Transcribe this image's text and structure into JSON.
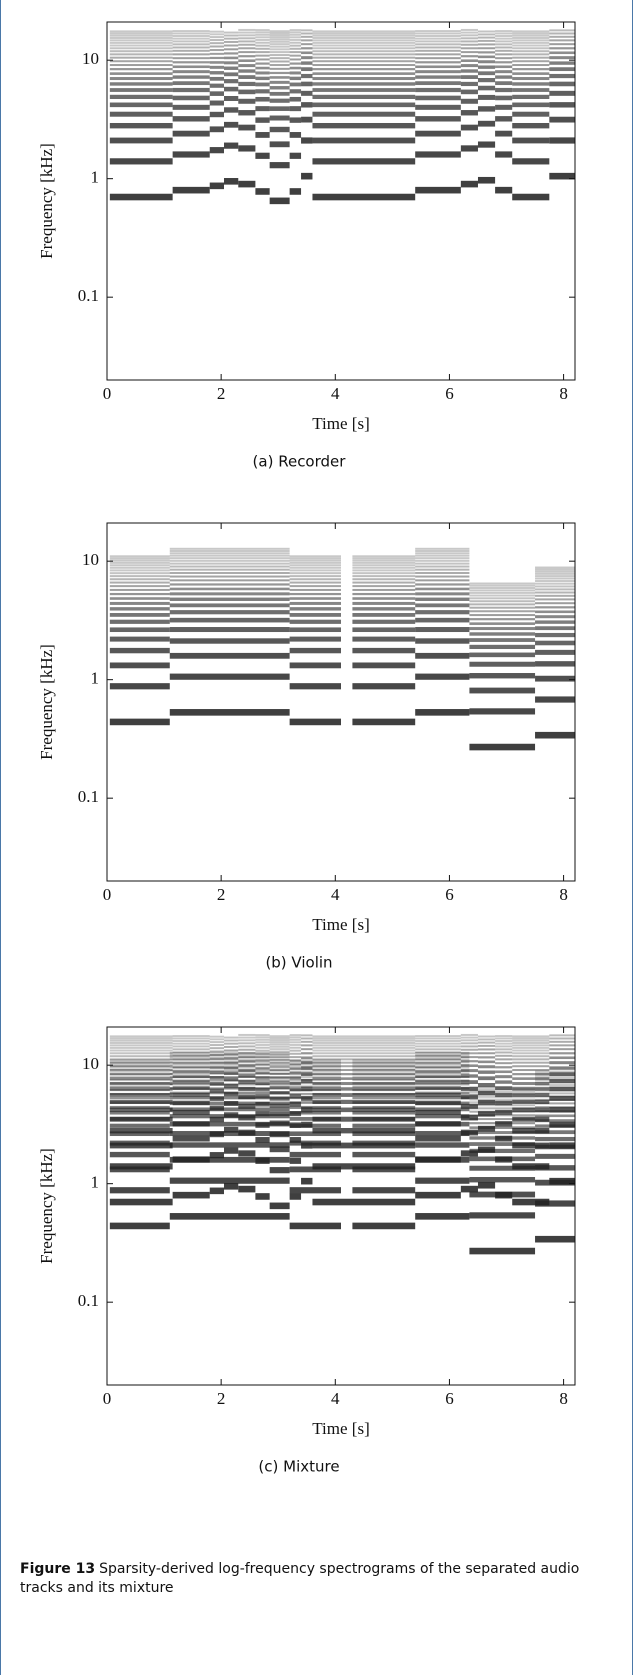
{
  "chart_data": [
    {
      "type": "spectrogram",
      "caption": "(a) Recorder",
      "xlabel": "Time [s]",
      "ylabel": "Frequency [kHz]",
      "xlim": [
        0,
        8.2
      ],
      "xticks": [
        0,
        2,
        4,
        6,
        8
      ],
      "ylim": [
        0.02,
        21
      ],
      "yticks": [
        0.1,
        1,
        10
      ],
      "log_y": true,
      "color": "#222222",
      "notes": {
        "start": [
          0.05,
          1.15,
          1.8,
          2.05,
          2.3,
          2.6,
          2.85,
          3.2,
          3.4,
          3.6,
          5.4,
          6.2,
          6.5,
          6.8,
          7.1,
          7.75
        ],
        "end": [
          1.15,
          1.8,
          2.05,
          2.3,
          2.6,
          2.85,
          3.2,
          3.4,
          3.6,
          5.4,
          6.2,
          6.5,
          6.8,
          7.1,
          7.75,
          8.2
        ],
        "f0": [
          0.7,
          0.8,
          0.87,
          0.95,
          0.9,
          0.78,
          0.65,
          0.78,
          1.05,
          0.7,
          0.8,
          0.9,
          0.97,
          0.8,
          0.7,
          1.05
        ],
        "top": [
          18,
          18,
          18,
          18,
          18,
          18,
          18,
          18,
          18,
          18,
          18,
          18,
          18,
          18,
          18,
          18
        ]
      }
    },
    {
      "type": "spectrogram",
      "caption": "(b) Violin",
      "xlabel": "Time [s]",
      "ylabel": "Frequency [kHz]",
      "xlim": [
        0,
        8.2
      ],
      "xticks": [
        0,
        2,
        4,
        6,
        8
      ],
      "ylim": [
        0.02,
        21
      ],
      "yticks": [
        0.1,
        1,
        10
      ],
      "log_y": true,
      "color": "#222222",
      "notes": {
        "start": [
          0.05,
          1.1,
          3.2,
          4.3,
          5.4,
          6.35,
          7.5
        ],
        "end": [
          1.1,
          3.2,
          4.1,
          5.4,
          6.35,
          7.5,
          8.2
        ],
        "f0": [
          0.44,
          0.53,
          0.44,
          0.44,
          0.53,
          0.27,
          0.34
        ],
        "top": [
          11,
          13,
          11,
          11,
          13,
          6.5,
          9
        ]
      }
    },
    {
      "type": "spectrogram",
      "caption": "(c) Mixture",
      "xlabel": "Time [s]",
      "ylabel": "Frequency [kHz]",
      "xlim": [
        0,
        8.2
      ],
      "xticks": [
        0,
        2,
        4,
        6,
        8
      ],
      "ylim": [
        0.02,
        21
      ],
      "yticks": [
        0.1,
        1,
        10
      ],
      "log_y": true,
      "color": "#222222",
      "notes": {
        "start": [
          0.05,
          1.15,
          1.8,
          2.05,
          2.3,
          2.6,
          2.85,
          3.2,
          3.4,
          3.6,
          5.4,
          6.2,
          6.5,
          6.8,
          7.1,
          7.75,
          0.05,
          1.1,
          3.2,
          4.3,
          5.4,
          6.35,
          7.5
        ],
        "end": [
          1.15,
          1.8,
          2.05,
          2.3,
          2.6,
          2.85,
          3.2,
          3.4,
          3.6,
          5.4,
          6.2,
          6.5,
          6.8,
          7.1,
          7.75,
          8.2,
          1.1,
          3.2,
          4.1,
          5.4,
          6.35,
          7.5,
          8.2
        ],
        "f0": [
          0.7,
          0.8,
          0.87,
          0.95,
          0.9,
          0.78,
          0.65,
          0.78,
          1.05,
          0.7,
          0.8,
          0.9,
          0.97,
          0.8,
          0.7,
          1.05,
          0.44,
          0.53,
          0.44,
          0.44,
          0.53,
          0.27,
          0.34
        ],
        "top": [
          18,
          18,
          18,
          18,
          18,
          18,
          18,
          18,
          18,
          18,
          18,
          18,
          18,
          18,
          18,
          18,
          11,
          13,
          11,
          11,
          13,
          6.5,
          9
        ]
      }
    }
  ],
  "figure_caption": {
    "label": "Figure 13",
    "text": "Sparsity-derived log-frequency spectrograms of the separated audio tracks and its mixture"
  }
}
